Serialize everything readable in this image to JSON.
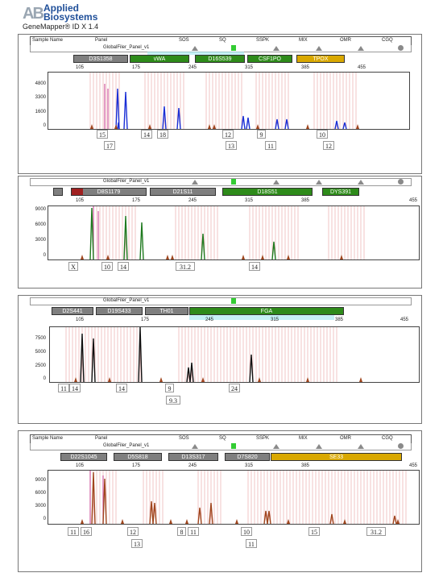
{
  "header": {
    "logo_mark": "AB",
    "company_line1": "Applied",
    "company_line2": "Biosystems",
    "app_version": "GeneMapper® ID X  1.4"
  },
  "columns": {
    "sample_name": "Sample Name",
    "panel": "Panel",
    "sos": "SOS",
    "sq": "SQ",
    "sspk": "SSPK",
    "mix": "MIX",
    "omr": "OMR",
    "cgq": "CGQ"
  },
  "panel_name": "GlobalFiler_Panel_v1",
  "bp_ticks": [
    "105",
    "175",
    "245",
    "315",
    "385",
    "455"
  ],
  "colors": {
    "blue": "#1a2fd6",
    "green": "#1f7a1f",
    "black": "#111111",
    "red": "#a0461e",
    "locus_gray": "#7f7f7f",
    "locus_green": "#2e8b1a",
    "locus_yellow": "#d9a800",
    "bin_pink": "#f2c4c4"
  },
  "panels": [
    {
      "dye": "blue",
      "y_ticks": [
        "4800",
        "3300",
        "1600",
        "0"
      ],
      "loci": [
        {
          "name": "D3S1358",
          "color": "gray"
        },
        {
          "name": "vWA",
          "color": "green"
        },
        {
          "name": "D16S539",
          "color": "green"
        },
        {
          "name": "CSF1PO",
          "color": "green"
        },
        {
          "name": "TPOX",
          "color": "yellow"
        }
      ],
      "alleles": [
        {
          "label": "15",
          "row": 1
        },
        {
          "label": "17",
          "row": 2
        },
        {
          "label": "14",
          "row": 1
        },
        {
          "label": "18",
          "row": 1
        },
        {
          "label": "12",
          "row": 1
        },
        {
          "label": "13",
          "row": 2
        },
        {
          "label": "9",
          "row": 1
        },
        {
          "label": "11",
          "row": 2
        },
        {
          "label": "10",
          "row": 1
        },
        {
          "label": "12",
          "row": 2
        }
      ]
    },
    {
      "dye": "green",
      "y_ticks": [
        "9000",
        "6000",
        "3000",
        "0"
      ],
      "loci": [
        {
          "name": "",
          "color": "gray"
        },
        {
          "name": "D8S1179",
          "color": "gray"
        },
        {
          "name": "D21S11",
          "color": "gray"
        },
        {
          "name": "D18S51",
          "color": "green"
        },
        {
          "name": "DYS391",
          "color": "green"
        }
      ],
      "alleles": [
        {
          "label": "X",
          "row": 1
        },
        {
          "label": "10",
          "row": 1
        },
        {
          "label": "14",
          "row": 1
        },
        {
          "label": "31.2",
          "row": 1
        },
        {
          "label": "14",
          "row": 1
        }
      ]
    },
    {
      "dye": "black",
      "y_ticks": [
        "7500",
        "5000",
        "2500",
        "0"
      ],
      "loci": [
        {
          "name": "D2S441",
          "color": "gray"
        },
        {
          "name": "D19S433",
          "color": "gray"
        },
        {
          "name": "TH01",
          "color": "gray"
        },
        {
          "name": "FGA",
          "color": "green"
        }
      ],
      "alleles": [
        {
          "label": "11",
          "row": 1
        },
        {
          "label": "14",
          "row": 1
        },
        {
          "label": "14",
          "row": 1
        },
        {
          "label": "9",
          "row": 1
        },
        {
          "label": "9.3",
          "row": 2
        },
        {
          "label": "24",
          "row": 1
        }
      ]
    },
    {
      "dye": "red",
      "y_ticks": [
        "9000",
        "6000",
        "3000",
        "0"
      ],
      "loci": [
        {
          "name": "D22S1045",
          "color": "gray"
        },
        {
          "name": "D5S818",
          "color": "gray"
        },
        {
          "name": "D13S317",
          "color": "gray"
        },
        {
          "name": "D7S820",
          "color": "gray"
        },
        {
          "name": "SE33",
          "color": "yellow"
        }
      ],
      "alleles": [
        {
          "label": "11",
          "row": 1
        },
        {
          "label": "16",
          "row": 1
        },
        {
          "label": "12",
          "row": 1
        },
        {
          "label": "13",
          "row": 2
        },
        {
          "label": "8",
          "row": 1
        },
        {
          "label": "11",
          "row": 1
        },
        {
          "label": "10",
          "row": 1
        },
        {
          "label": "11",
          "row": 2
        },
        {
          "label": "15",
          "row": 1
        },
        {
          "label": "31.2",
          "row": 1
        }
      ]
    }
  ]
}
